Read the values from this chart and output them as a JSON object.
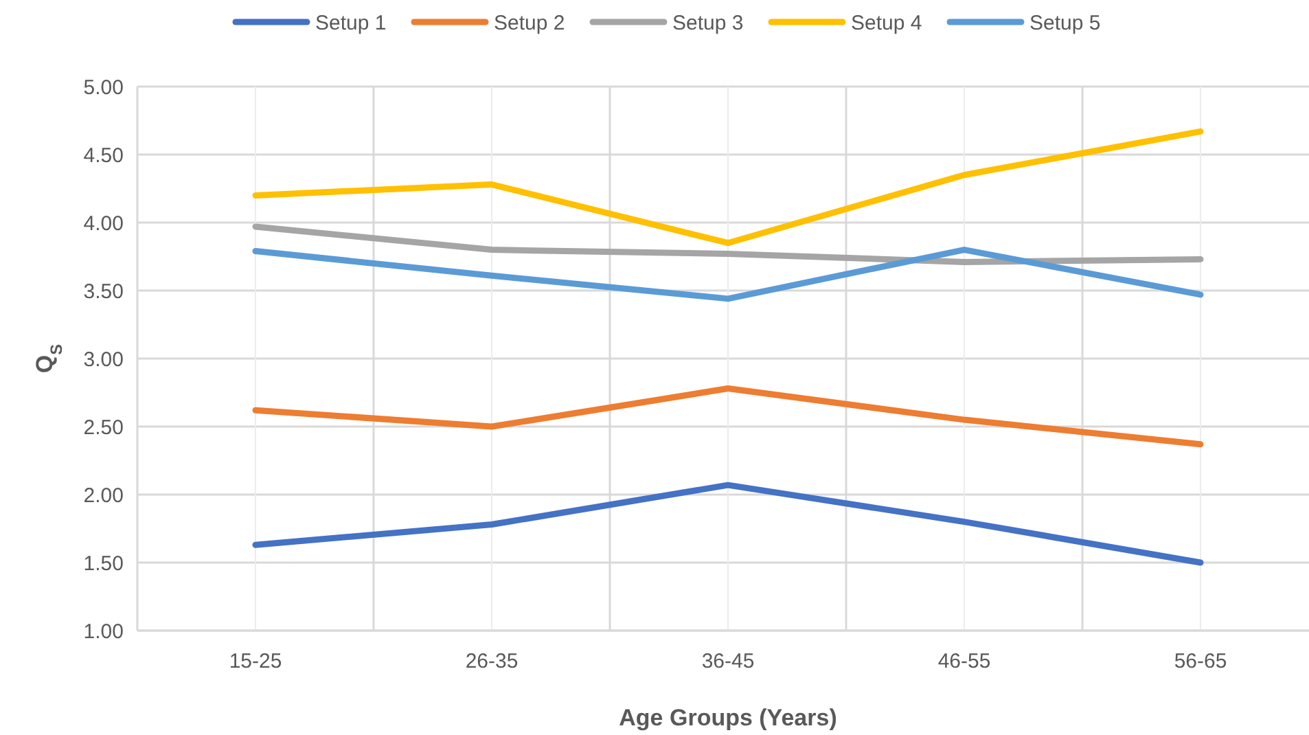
{
  "chart_data": {
    "type": "line",
    "xlabel": "Age Groups (Years)",
    "ylabel": "Q$_{S}$",
    "categories": [
      "15-25",
      "26-35",
      "36-45",
      "46-55",
      "56-65"
    ],
    "series": [
      {
        "name": "Setup 1",
        "color": "#4472c4",
        "values": [
          1.63,
          1.78,
          2.07,
          1.8,
          1.5
        ]
      },
      {
        "name": "Setup 2",
        "color": "#ed7d31",
        "values": [
          2.62,
          2.5,
          2.78,
          2.55,
          2.37
        ]
      },
      {
        "name": "Setup 3",
        "color": "#a5a5a5",
        "values": [
          3.97,
          3.8,
          3.77,
          3.71,
          3.73
        ]
      },
      {
        "name": "Setup 4",
        "color": "#ffc000",
        "values": [
          4.2,
          4.28,
          3.85,
          4.35,
          4.67
        ]
      },
      {
        "name": "Setup 5",
        "color": "#5b9bd5",
        "values": [
          3.79,
          3.61,
          3.44,
          3.8,
          3.47
        ]
      }
    ],
    "ylim": [
      1,
      5
    ],
    "yticks": [
      {
        "value": 1,
        "label": "1.00"
      },
      {
        "value": 1.5,
        "label": "1.50"
      },
      {
        "value": 2,
        "label": "2.00"
      },
      {
        "value": 2.5,
        "label": "2.50"
      },
      {
        "value": 3,
        "label": "3.00"
      },
      {
        "value": 3.5,
        "label": "3.50"
      },
      {
        "value": 4,
        "label": "4.00"
      },
      {
        "value": 4.5,
        "label": "4.50"
      },
      {
        "value": 5,
        "label": "5.00"
      }
    ],
    "grid": true,
    "legend": "top",
    "marker": "none",
    "line_style": "solid"
  }
}
